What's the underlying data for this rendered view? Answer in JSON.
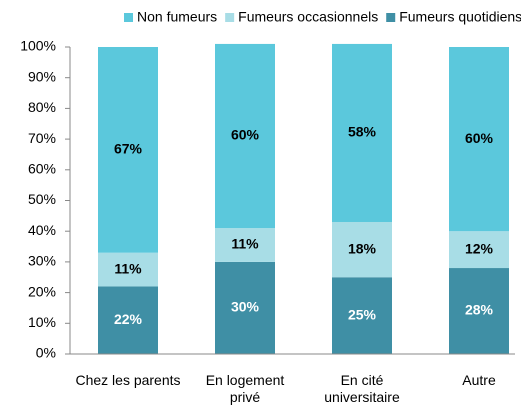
{
  "chart_data": {
    "type": "stacked_bar",
    "categories": [
      "Chez les parents",
      "En logement privé",
      "En cité universitaire",
      "Autre"
    ],
    "series": [
      {
        "name": "Non fumeurs",
        "color": "#5bc8dc",
        "values": [
          67,
          60,
          58,
          60
        ],
        "value_labels": [
          "67%",
          "60%",
          "58%",
          "60%"
        ]
      },
      {
        "name": "Fumeurs occasionnels",
        "color": "#a8dde6",
        "values": [
          11,
          11,
          18,
          12
        ],
        "value_labels": [
          "11%",
          "11%",
          "18%",
          "12%"
        ]
      },
      {
        "name": "Fumeurs quotidiens",
        "color": "#3f8fa5",
        "values": [
          22,
          30,
          25,
          28
        ],
        "value_labels": [
          "22%",
          "30%",
          "25%",
          "28%"
        ]
      }
    ],
    "ylim": [
      0,
      100
    ],
    "yticks": [
      {
        "value": 0,
        "label": "0%"
      },
      {
        "value": 10,
        "label": "10%"
      },
      {
        "value": 20,
        "label": "20%"
      },
      {
        "value": 30,
        "label": "30%"
      },
      {
        "value": 40,
        "label": "40%"
      },
      {
        "value": 50,
        "label": "50%"
      },
      {
        "value": 60,
        "label": "60%"
      },
      {
        "value": 70,
        "label": "70%"
      },
      {
        "value": 80,
        "label": "80%"
      },
      {
        "value": 90,
        "label": "90%"
      },
      {
        "value": 100,
        "label": "100%"
      }
    ],
    "legend": "top",
    "grid": false
  }
}
